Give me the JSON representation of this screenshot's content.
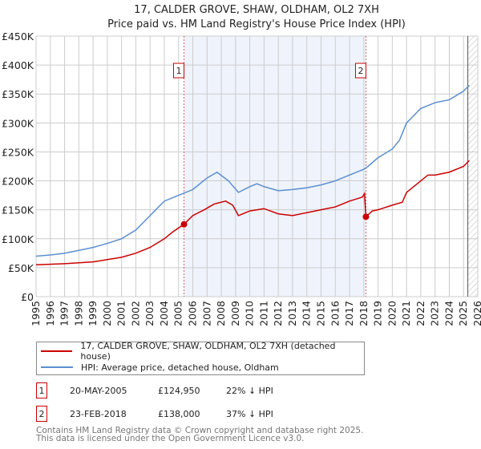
{
  "chart_data": {
    "type": "line",
    "title": "17, CALDER GROVE, SHAW, OLDHAM, OL2 7XH",
    "subtitle": "Price paid vs. HM Land Registry's House Price Index (HPI)",
    "xlim": [
      1995,
      2026
    ],
    "ylim": [
      0,
      450000
    ],
    "yticks": [
      {
        "v": 0,
        "l": "£0"
      },
      {
        "v": 50000,
        "l": "£50K"
      },
      {
        "v": 100000,
        "l": "£100K"
      },
      {
        "v": 150000,
        "l": "£150K"
      },
      {
        "v": 200000,
        "l": "£200K"
      },
      {
        "v": 250000,
        "l": "£250K"
      },
      {
        "v": 300000,
        "l": "£300K"
      },
      {
        "v": 350000,
        "l": "£350K"
      },
      {
        "v": 400000,
        "l": "£400K"
      },
      {
        "v": 450000,
        "l": "£450K"
      }
    ],
    "xticks": [
      "1995",
      "1996",
      "1997",
      "1998",
      "1999",
      "2000",
      "2001",
      "2002",
      "2003",
      "2004",
      "2005",
      "2006",
      "2007",
      "2008",
      "2009",
      "2010",
      "2011",
      "2012",
      "2013",
      "2014",
      "2015",
      "2016",
      "2017",
      "2018",
      "2019",
      "2020",
      "2021",
      "2022",
      "2023",
      "2024",
      "2025",
      "2026"
    ],
    "series": [
      {
        "name": "17, CALDER GROVE, SHAW, OLDHAM, OL2 7XH (detached house)",
        "color": "#cc0000",
        "x": [
          1995,
          1997,
          1999,
          2000,
          2001,
          2002,
          2003,
          2004,
          2004.6,
          2005.38,
          2006,
          2006.8,
          2007.5,
          2008.3,
          2008.8,
          2009.2,
          2010,
          2011,
          2012,
          2013,
          2014,
          2015,
          2016,
          2017,
          2017.9,
          2018.05,
          2018.15,
          2018.6,
          2019,
          2020,
          2020.7,
          2021,
          2022,
          2022.5,
          2023,
          2024,
          2025,
          2025.4
        ],
        "y": [
          55000,
          57000,
          60000,
          64000,
          68000,
          75000,
          85000,
          100000,
          112000,
          124950,
          140000,
          150000,
          160000,
          165000,
          158000,
          140000,
          148000,
          152000,
          143000,
          140000,
          145000,
          150000,
          155000,
          165000,
          172000,
          178000,
          138000,
          148000,
          150000,
          158000,
          163000,
          180000,
          200000,
          210000,
          210000,
          215000,
          225000,
          235000
        ]
      },
      {
        "name": "HPI: Average price, detached house, Oldham",
        "color": "#5b8fd0",
        "x": [
          1995,
          1996,
          1997,
          1998,
          1999,
          2000,
          2001,
          2002,
          2003,
          2004,
          2005,
          2006,
          2007,
          2007.7,
          2008.5,
          2009.2,
          2010,
          2010.5,
          2011,
          2012,
          2013,
          2014,
          2015,
          2016,
          2017,
          2018,
          2018.3,
          2019,
          2020,
          2020.5,
          2021,
          2022,
          2022.5,
          2023,
          2024,
          2025,
          2025.4
        ],
        "y": [
          70000,
          72000,
          75000,
          80000,
          85000,
          92000,
          100000,
          115000,
          140000,
          165000,
          175000,
          185000,
          205000,
          215000,
          200000,
          180000,
          190000,
          195000,
          190000,
          183000,
          185000,
          188000,
          193000,
          200000,
          210000,
          220000,
          225000,
          240000,
          255000,
          270000,
          300000,
          325000,
          330000,
          335000,
          340000,
          355000,
          365000
        ]
      }
    ],
    "annotations": [
      {
        "label": "1",
        "x": 2005.38
      },
      {
        "label": "2",
        "x": 2018.15
      }
    ],
    "forecast_start": 2025.3
  },
  "legend": {
    "red": "17, CALDER GROVE, SHAW, OLDHAM, OL2 7XH (detached house)",
    "blue": "HPI: Average price, detached house, Oldham"
  },
  "transactions": [
    {
      "n": "1",
      "date": "20-MAY-2005",
      "price": "£124,950",
      "hpi": "22% ↓ HPI"
    },
    {
      "n": "2",
      "date": "23-FEB-2018",
      "price": "£138,000",
      "hpi": "37% ↓ HPI"
    }
  ],
  "footer": [
    "Contains HM Land Registry data © Crown copyright and database right 2025.",
    "This data is licensed under the Open Government Licence v3.0."
  ]
}
